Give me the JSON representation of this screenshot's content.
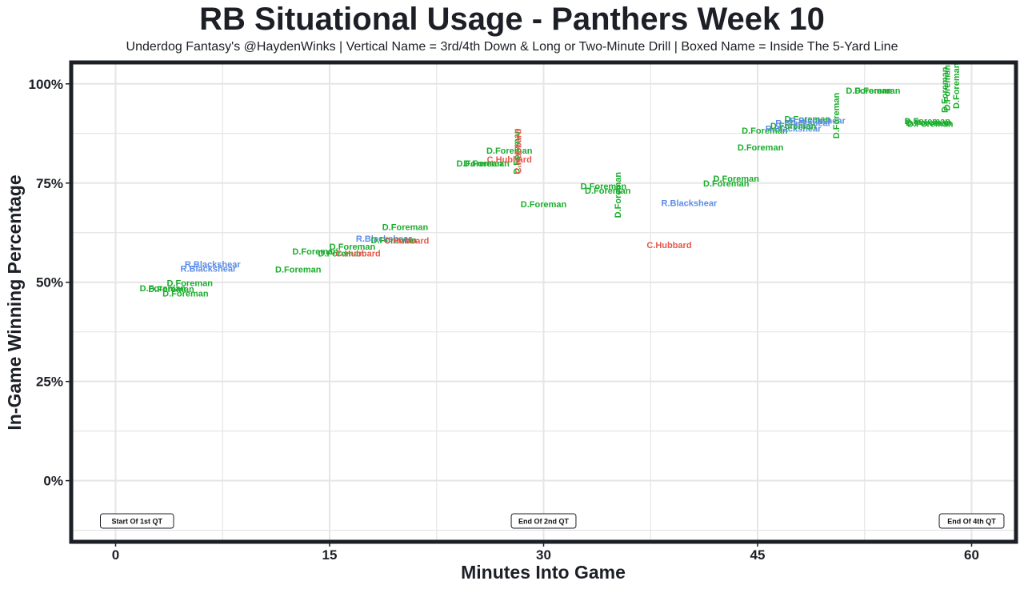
{
  "header": {
    "title": "RB Situational Usage - Panthers Week 10",
    "subtitle": "Underdog Fantasy's @HaydenWinks | Vertical Name = 3rd/4th Down & Long or Two-Minute Drill | Boxed Name = Inside The 5-Yard Line"
  },
  "colors": {
    "D.Foreman": "#1aad2c",
    "R.Blackshear": "#5b8de8",
    "C.Hubbard": "#e8574a",
    "frame": "#1c1f26",
    "grid": "#e5e5e5"
  },
  "chart_data": {
    "type": "scatter",
    "title": "RB Situational Usage - Panthers Week 10",
    "subtitle": "Underdog Fantasy's @HaydenWinks | Vertical Name = 3rd/4th Down & Long or Two-Minute Drill | Boxed Name = Inside The 5-Yard Line",
    "xlabel": "Minutes Into Game",
    "ylabel": "In-Game Winning Percentage",
    "xlim": [
      -3,
      63
    ],
    "ylim": [
      -0.15,
      1.05
    ],
    "x_ticks": [
      0,
      15,
      30,
      45,
      60
    ],
    "x_tick_labels": [
      "0",
      "15",
      "30",
      "45",
      "60"
    ],
    "y_ticks": [
      0,
      0.25,
      0.5,
      0.75,
      1.0
    ],
    "y_tick_labels": [
      "0%",
      "25%",
      "50%",
      "75%",
      "100%"
    ],
    "grid": true,
    "legend": "none",
    "quarter_markers": [
      {
        "x": 1.5,
        "label": "Start Of 1st QT"
      },
      {
        "x": 30,
        "label": "End Of 2nd QT"
      },
      {
        "x": 60,
        "label": "End Of 4th QT"
      }
    ],
    "points": [
      {
        "x": 3.3,
        "y": 0.485,
        "player": "D.Foreman",
        "vertical": false
      },
      {
        "x": 3.9,
        "y": 0.483,
        "player": "D.Foreman",
        "vertical": false
      },
      {
        "x": 5.2,
        "y": 0.498,
        "player": "D.Foreman",
        "vertical": false
      },
      {
        "x": 4.9,
        "y": 0.472,
        "player": "D.Foreman",
        "vertical": false
      },
      {
        "x": 6.8,
        "y": 0.546,
        "player": "R.Blackshear",
        "vertical": false
      },
      {
        "x": 6.5,
        "y": 0.535,
        "player": "R.Blackshear",
        "vertical": false
      },
      {
        "x": 12.8,
        "y": 0.533,
        "player": "D.Foreman",
        "vertical": false
      },
      {
        "x": 14.0,
        "y": 0.578,
        "player": "D.Foreman",
        "vertical": false
      },
      {
        "x": 16.6,
        "y": 0.59,
        "player": "D.Foreman",
        "vertical": false
      },
      {
        "x": 15.8,
        "y": 0.573,
        "player": "D.Foreman",
        "vertical": false
      },
      {
        "x": 17.0,
        "y": 0.573,
        "player": "C.Hubbard",
        "vertical": false
      },
      {
        "x": 18.8,
        "y": 0.61,
        "player": "R.Blackshear",
        "vertical": false
      },
      {
        "x": 19.5,
        "y": 0.606,
        "player": "D.Foreman",
        "vertical": false
      },
      {
        "x": 20.4,
        "y": 0.605,
        "player": "C.Hubbard",
        "vertical": false
      },
      {
        "x": 20.3,
        "y": 0.64,
        "player": "D.Foreman",
        "vertical": false
      },
      {
        "x": 25.5,
        "y": 0.8,
        "player": "D.Foreman",
        "vertical": false
      },
      {
        "x": 26.0,
        "y": 0.8,
        "player": "D.Foreman",
        "vertical": false
      },
      {
        "x": 27.6,
        "y": 0.81,
        "player": "C.Hubbard",
        "vertical": false
      },
      {
        "x": 27.6,
        "y": 0.832,
        "player": "D.Foreman",
        "vertical": false
      },
      {
        "x": 28.1,
        "y": 0.83,
        "player": "D.Foreman",
        "vertical": true
      },
      {
        "x": 28.2,
        "y": 0.83,
        "player": "C.Hubbard",
        "vertical": true
      },
      {
        "x": 30.0,
        "y": 0.697,
        "player": "D.Foreman",
        "vertical": false
      },
      {
        "x": 34.2,
        "y": 0.742,
        "player": "D.Foreman",
        "vertical": false
      },
      {
        "x": 34.5,
        "y": 0.731,
        "player": "D.Foreman",
        "vertical": false
      },
      {
        "x": 35.2,
        "y": 0.72,
        "player": "D.Foreman",
        "vertical": true
      },
      {
        "x": 40.2,
        "y": 0.7,
        "player": "R.Blackshear",
        "vertical": false
      },
      {
        "x": 38.8,
        "y": 0.594,
        "player": "C.Hubbard",
        "vertical": false
      },
      {
        "x": 42.8,
        "y": 0.749,
        "player": "D.Foreman",
        "vertical": false
      },
      {
        "x": 43.5,
        "y": 0.762,
        "player": "D.Foreman",
        "vertical": false
      },
      {
        "x": 45.2,
        "y": 0.84,
        "player": "D.Foreman",
        "vertical": false
      },
      {
        "x": 45.5,
        "y": 0.883,
        "player": "D.Foreman",
        "vertical": false
      },
      {
        "x": 47.5,
        "y": 0.888,
        "player": "R.Blackshear",
        "vertical": false
      },
      {
        "x": 47.5,
        "y": 0.895,
        "player": "D.Foreman",
        "vertical": false
      },
      {
        "x": 48.2,
        "y": 0.902,
        "player": "R.Blackshear",
        "vertical": false
      },
      {
        "x": 48.5,
        "y": 0.912,
        "player": "D.Foreman",
        "vertical": false
      },
      {
        "x": 49.2,
        "y": 0.908,
        "player": "R.Blackshear",
        "vertical": false
      },
      {
        "x": 50.5,
        "y": 0.92,
        "player": "D.Foreman",
        "vertical": true
      },
      {
        "x": 52.8,
        "y": 0.983,
        "player": "D.Foreman",
        "vertical": false
      },
      {
        "x": 53.4,
        "y": 0.983,
        "player": "D.Foreman",
        "vertical": false
      },
      {
        "x": 56.9,
        "y": 0.907,
        "player": "D.Foreman",
        "vertical": false
      },
      {
        "x": 57.0,
        "y": 0.903,
        "player": "D.Foreman",
        "vertical": false
      },
      {
        "x": 57.1,
        "y": 0.9,
        "player": "D.Foreman",
        "vertical": false
      },
      {
        "x": 58.1,
        "y": 0.985,
        "player": "D.Foreman",
        "vertical": true
      },
      {
        "x": 58.25,
        "y": 0.99,
        "player": "D.Foreman",
        "vertical": true
      },
      {
        "x": 58.9,
        "y": 0.995,
        "player": "D.Foreman",
        "vertical": true
      }
    ]
  }
}
